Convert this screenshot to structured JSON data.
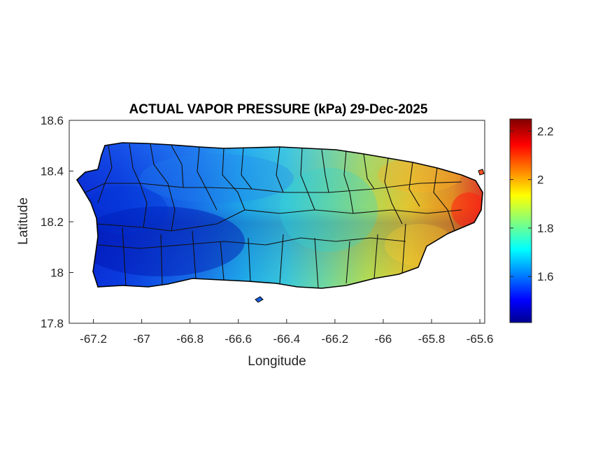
{
  "chart_data": {
    "type": "heatmap",
    "title": "ACTUAL VAPOR PRESSURE (kPa) 29-Dec-2025",
    "xlabel": "Longitude",
    "ylabel": "Latitude",
    "xlim": [
      -67.3,
      -65.58
    ],
    "ylim": [
      17.8,
      18.6
    ],
    "x_ticks": [
      "-67.2",
      "-67",
      "-66.8",
      "-66.6",
      "-66.4",
      "-66.2",
      "-66",
      "-65.8",
      "-65.6"
    ],
    "y_ticks": [
      "18.6",
      "18.4",
      "18.2",
      "18",
      "17.8"
    ],
    "colorbar": {
      "colormap": "jet",
      "range": [
        1.41,
        2.25
      ],
      "ticks": [
        "2.2",
        "2",
        "1.8",
        "1.6"
      ]
    },
    "grid": false,
    "field_trend": [
      {
        "lon": -67.2,
        "lat": 18.1,
        "value": 1.45
      },
      {
        "lon": -66.9,
        "lat": 18.4,
        "value": 1.55
      },
      {
        "lon": -66.6,
        "lat": 18.3,
        "value": 1.62
      },
      {
        "lon": -66.3,
        "lat": 18.1,
        "value": 1.72
      },
      {
        "lon": -66.1,
        "lat": 18.35,
        "value": 1.8
      },
      {
        "lon": -65.9,
        "lat": 18.3,
        "value": 1.95
      },
      {
        "lon": -65.65,
        "lat": 18.25,
        "value": 2.2
      }
    ]
  }
}
